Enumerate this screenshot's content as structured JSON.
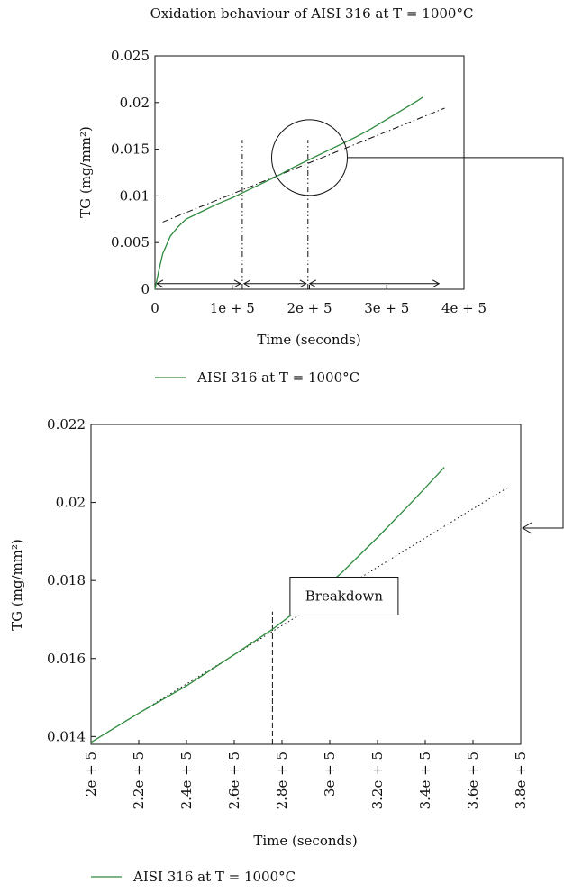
{
  "chart_data": [
    {
      "type": "line",
      "title": "Oxidation behaviour of AISI 316 at T = 1000°C",
      "xlabel": "Time (seconds)",
      "ylabel": "TG (mg/mm²)",
      "xlim": [
        0,
        400000
      ],
      "ylim": [
        0,
        0.025
      ],
      "x_ticks": [
        0,
        100000,
        200000,
        300000,
        400000
      ],
      "x_tick_labels": [
        "0",
        "1e + 5",
        "2e + 5",
        "3e + 5",
        "4e + 5"
      ],
      "y_ticks": [
        0,
        0.005,
        0.01,
        0.015,
        0.02,
        0.025
      ],
      "y_tick_labels": [
        "0",
        "0.005",
        "0.01",
        "0.015",
        "0.02",
        "0.025"
      ],
      "series": [
        {
          "name": "AISI 316 at T = 1000°C",
          "color": "#2e8b3e",
          "x": [
            0,
            5000,
            10000,
            20000,
            30000,
            40000,
            60000,
            80000,
            100000,
            120000,
            140000,
            160000,
            180000,
            200000,
            220000,
            240000,
            260000,
            280000,
            300000,
            320000,
            340000,
            347000
          ],
          "y": [
            0.0,
            0.002,
            0.0038,
            0.0057,
            0.0067,
            0.0075,
            0.0083,
            0.0091,
            0.0098,
            0.0106,
            0.0114,
            0.0122,
            0.0131,
            0.0139,
            0.0147,
            0.0155,
            0.0163,
            0.0172,
            0.0182,
            0.0192,
            0.0202,
            0.0206
          ]
        }
      ],
      "trend_line": {
        "x": [
          10000,
          375000
        ],
        "y": [
          0.0072,
          0.0194
        ]
      },
      "vertical_markers": [
        {
          "x": 113000,
          "y_top": 0.016
        },
        {
          "x": 198000,
          "y_top": 0.016
        }
      ],
      "stage_arrows": [
        {
          "x": [
            0,
            113000
          ],
          "y": 0.0006
        },
        {
          "x": 113000,
          "x_end": 198000,
          "y": 0.0006
        },
        {
          "x": 198000,
          "x_end": 370000,
          "y": 0.0006
        }
      ],
      "zoom_circle": {
        "x": 200000,
        "y": 0.0141
      },
      "legend": {
        "label": "AISI 316 at T = 1000°C",
        "placement": "bottom"
      }
    },
    {
      "type": "line",
      "xlabel": "Time (seconds)",
      "ylabel": "TG (mg/mm²)",
      "xlim": [
        200000,
        380000
      ],
      "ylim": [
        0.0138,
        0.022
      ],
      "x_ticks": [
        200000,
        220000,
        240000,
        260000,
        280000,
        300000,
        320000,
        340000,
        360000,
        380000
      ],
      "x_tick_labels": [
        "2e + 5",
        "2.2e + 5",
        "2.4e + 5",
        "2.6e + 5",
        "2.8e + 5",
        "3e + 5",
        "3.2e + 5",
        "3.4e + 5",
        "3.6e + 5",
        "3.8e + 5"
      ],
      "y_ticks": [
        0.014,
        0.016,
        0.018,
        0.02,
        0.022
      ],
      "y_tick_labels": [
        "0.014",
        "0.016",
        "0.018",
        "0.02",
        "0.022"
      ],
      "series": [
        {
          "name": "AISI 316 at T = 1000°C",
          "color": "#2e8b3e",
          "x": [
            200000,
            220000,
            240000,
            260000,
            276000,
            290000,
            305000,
            320000,
            335000,
            348000
          ],
          "y": [
            0.01385,
            0.0146,
            0.0153,
            0.0161,
            0.01675,
            0.0174,
            0.0182,
            0.0191,
            0.02005,
            0.0209
          ]
        }
      ],
      "extrapolation_line": {
        "x": [
          200000,
          375000
        ],
        "y": [
          0.01385,
          0.0204
        ]
      },
      "breakdown_marker": {
        "x": 276000,
        "y_top": 0.0172
      },
      "annotation": {
        "text": "Breakdown",
        "x": 306000,
        "y": 0.0176
      },
      "legend": {
        "label": "AISI 316 at T = 1000°C",
        "placement": "bottom"
      }
    }
  ]
}
